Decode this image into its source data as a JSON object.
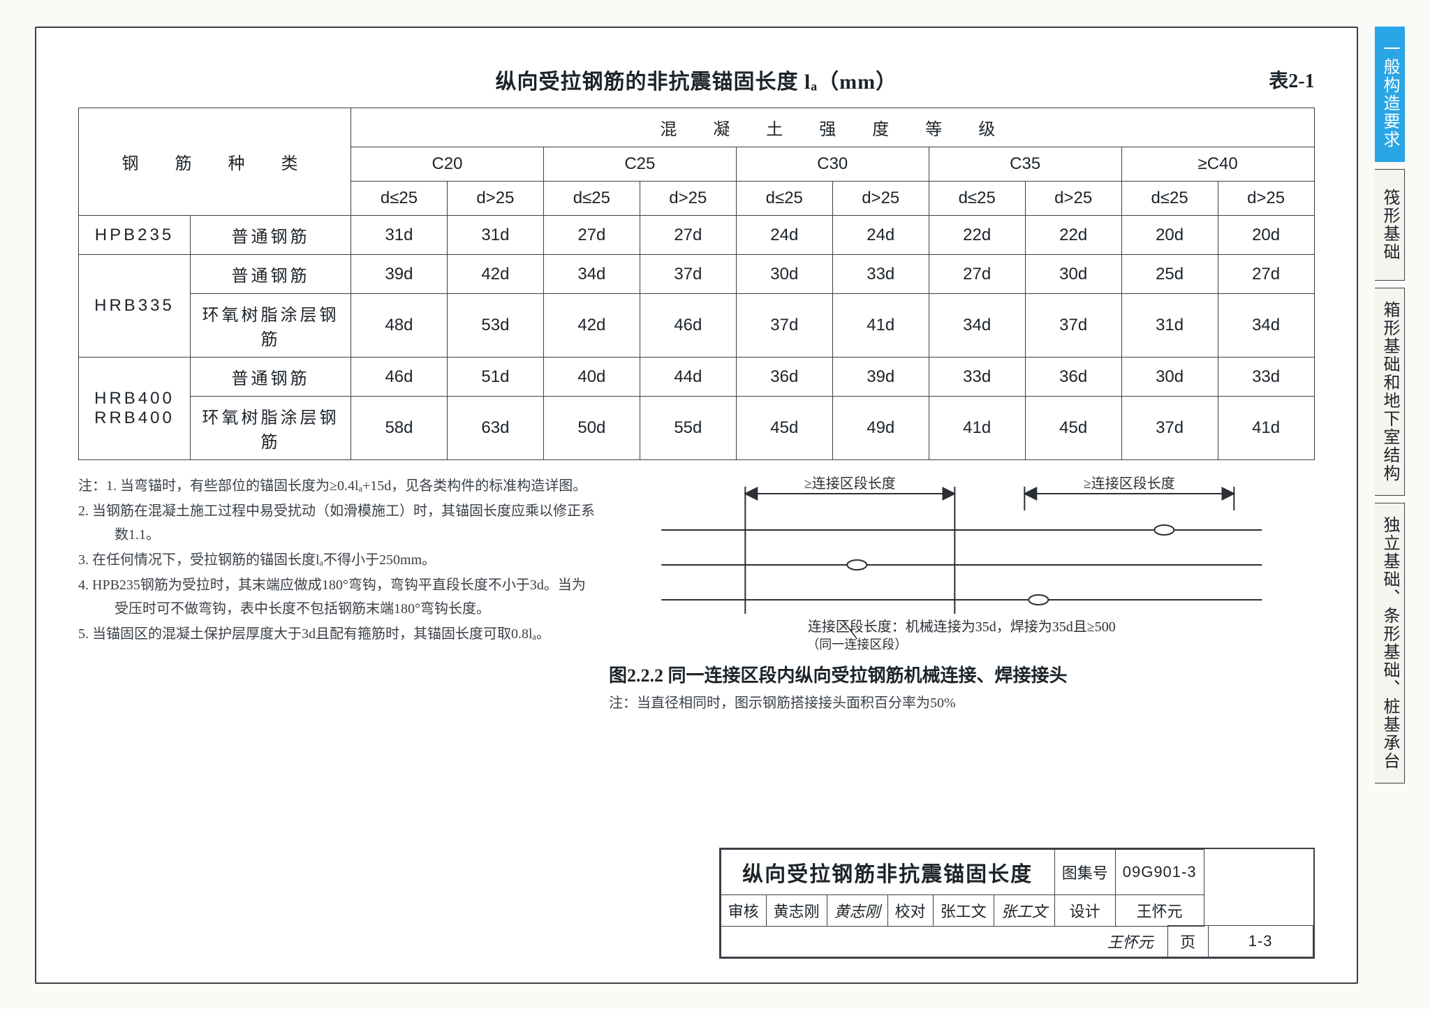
{
  "title": "纵向受拉钢筋的非抗震锚固长度 lₐ（mm）",
  "table_number": "表2-1",
  "header": {
    "top_merge": "混　凝　土　强　度　等　级",
    "row_label": "钢　筋　种　类",
    "grades": [
      "C20",
      "C25",
      "C30",
      "C35",
      "≥C40"
    ],
    "sub_cols": [
      "d≤25",
      "d>25"
    ]
  },
  "rows": [
    {
      "grade": "HPB235",
      "subs": [
        {
          "name": "普通钢筋",
          "vals": [
            "31d",
            "31d",
            "27d",
            "27d",
            "24d",
            "24d",
            "22d",
            "22d",
            "20d",
            "20d"
          ]
        }
      ]
    },
    {
      "grade": "HRB335",
      "subs": [
        {
          "name": "普通钢筋",
          "vals": [
            "39d",
            "42d",
            "34d",
            "37d",
            "30d",
            "33d",
            "27d",
            "30d",
            "25d",
            "27d"
          ]
        },
        {
          "name": "环氧树脂涂层钢筋",
          "vals": [
            "48d",
            "53d",
            "42d",
            "46d",
            "37d",
            "41d",
            "34d",
            "37d",
            "31d",
            "34d"
          ]
        }
      ]
    },
    {
      "grade": "HRB400\nRRB400",
      "subs": [
        {
          "name": "普通钢筋",
          "vals": [
            "46d",
            "51d",
            "40d",
            "44d",
            "36d",
            "39d",
            "33d",
            "36d",
            "30d",
            "33d"
          ]
        },
        {
          "name": "环氧树脂涂层钢筋",
          "vals": [
            "58d",
            "63d",
            "50d",
            "55d",
            "45d",
            "49d",
            "41d",
            "45d",
            "37d",
            "41d"
          ]
        }
      ]
    }
  ],
  "notes": [
    "当弯锚时，有些部位的锚固长度为≥0.4lₐ+15d，见各类构件的标准构造详图。",
    "当钢筋在混凝土施工过程中易受扰动（如滑模施工）时，其锚固长度应乘以修正系数1.1。",
    "在任何情况下，受拉钢筋的锚固长度lₐ不得小于250mm。",
    "HPB235钢筋为受拉时，其末端应做成180°弯钩，弯钩平直段长度不小于3d。当为受压时可不做弯钩，表中长度不包括钢筋末端180°弯钩长度。",
    "当锚固区的混凝土保护层厚度大于3d且配有箍筋时，其锚固长度可取0.8lₐ。"
  ],
  "diagram": {
    "top_dim_label": "≥连接区段长度",
    "caption_line": "连接区段长度：机械连接为35d，焊接为35d且≥500",
    "caption_sub": "（同一连接区段）",
    "figure_number": "图2.2.2 同一连接区段内纵向受拉钢筋机械连接、焊接接头",
    "figure_note": "注：当直径相同时，图示钢筋搭接接头面积百分率为50%",
    "colors": {
      "line": "#2b2f34",
      "accent": "#2b2f34",
      "dim": "#2b2f34"
    },
    "line_width": 2,
    "joint_marker_r": 6
  },
  "titleblock": {
    "drawing_title": "纵向受拉钢筋非抗震锚固长度",
    "code_label": "图集号",
    "code": "09G901-3",
    "page_label": "页",
    "page": "1-3",
    "reviewer_label": "审核",
    "reviewer": "黄志刚",
    "reviewer_sig": "黄志刚",
    "proof_label": "校对",
    "proof": "张工文",
    "proof_sig": "张工文",
    "design_label": "设计",
    "design": "王怀元",
    "design_sig": "王怀元"
  },
  "tabs": [
    {
      "label": "一般构造要求",
      "active": true
    },
    {
      "label": "筏形基础",
      "active": false
    },
    {
      "label": "箱形基础和地下室结构",
      "active": false
    },
    {
      "label": "独立基础、条形基础、桩基承台",
      "active": false
    }
  ],
  "style": {
    "page_bg": "#fafaf6",
    "border_color": "#3a4047",
    "active_tab_color": "#2aa6e6",
    "font_body_pt": 20,
    "font_title_pt": 30,
    "table_cell_fontsize": 24
  }
}
